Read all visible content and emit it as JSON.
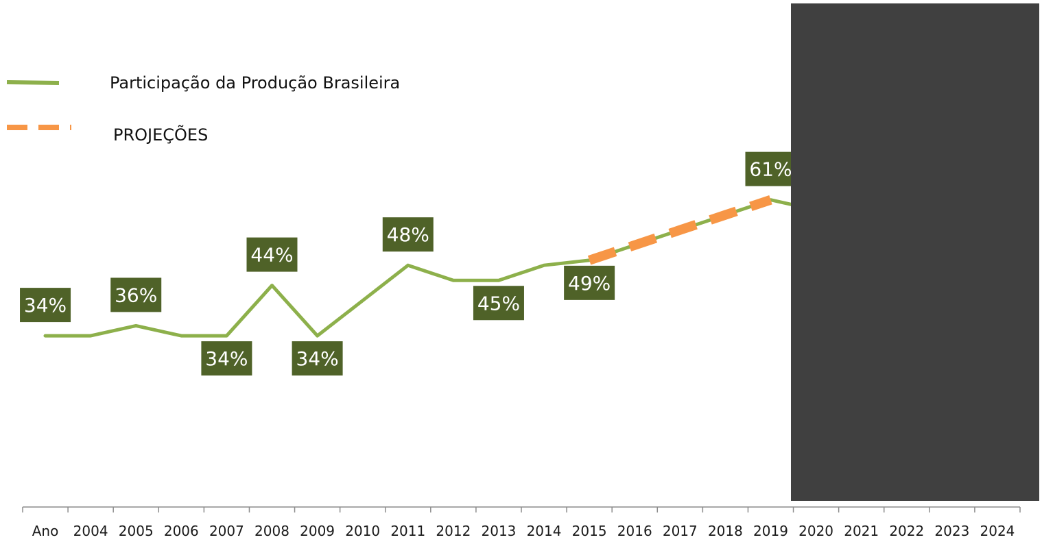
{
  "chart_data": {
    "type": "line",
    "title": "",
    "xlabel": "",
    "ylabel": "",
    "categories": [
      "Ano",
      "2004",
      "2005",
      "2006",
      "2007",
      "2008",
      "2009",
      "2010",
      "2011",
      "2012",
      "2013",
      "2014",
      "2015",
      "2016",
      "2017",
      "2018",
      "2019",
      "2020",
      "2021",
      "2022",
      "2023",
      "2024"
    ],
    "ylim": [
      0,
      100
    ],
    "grid": false,
    "legend_position": "top-left",
    "series": [
      {
        "name": "Participação da Produção Brasileira",
        "color": "#8DB04B",
        "style": "solid",
        "values": [
          34,
          34,
          36,
          34,
          34,
          44,
          34,
          41,
          48,
          45,
          45,
          48,
          49,
          52,
          55,
          58,
          61,
          59,
          null,
          null,
          null,
          null
        ]
      },
      {
        "name": "PROJEÇÕES",
        "color": "#F79646",
        "style": "dashed",
        "values": [
          null,
          null,
          null,
          null,
          null,
          null,
          null,
          null,
          null,
          null,
          null,
          null,
          49,
          52,
          55,
          58,
          61,
          null,
          null,
          null,
          null,
          null
        ]
      }
    ],
    "data_labels": [
      {
        "category": "Ano",
        "text": "34%",
        "position": "above"
      },
      {
        "category": "2005",
        "text": "36%",
        "position": "above"
      },
      {
        "category": "2007",
        "text": "34%",
        "position": "below"
      },
      {
        "category": "2008",
        "text": "44%",
        "position": "above"
      },
      {
        "category": "2009",
        "text": "34%",
        "position": "below"
      },
      {
        "category": "2011",
        "text": "48%",
        "position": "above"
      },
      {
        "category": "2013",
        "text": "45%",
        "position": "below"
      },
      {
        "category": "2015",
        "text": "49%",
        "position": "below"
      },
      {
        "category": "2019",
        "text": "61%",
        "position": "above"
      }
    ],
    "label_box_color": "#4F6228",
    "occlusion_color": "#404040"
  }
}
